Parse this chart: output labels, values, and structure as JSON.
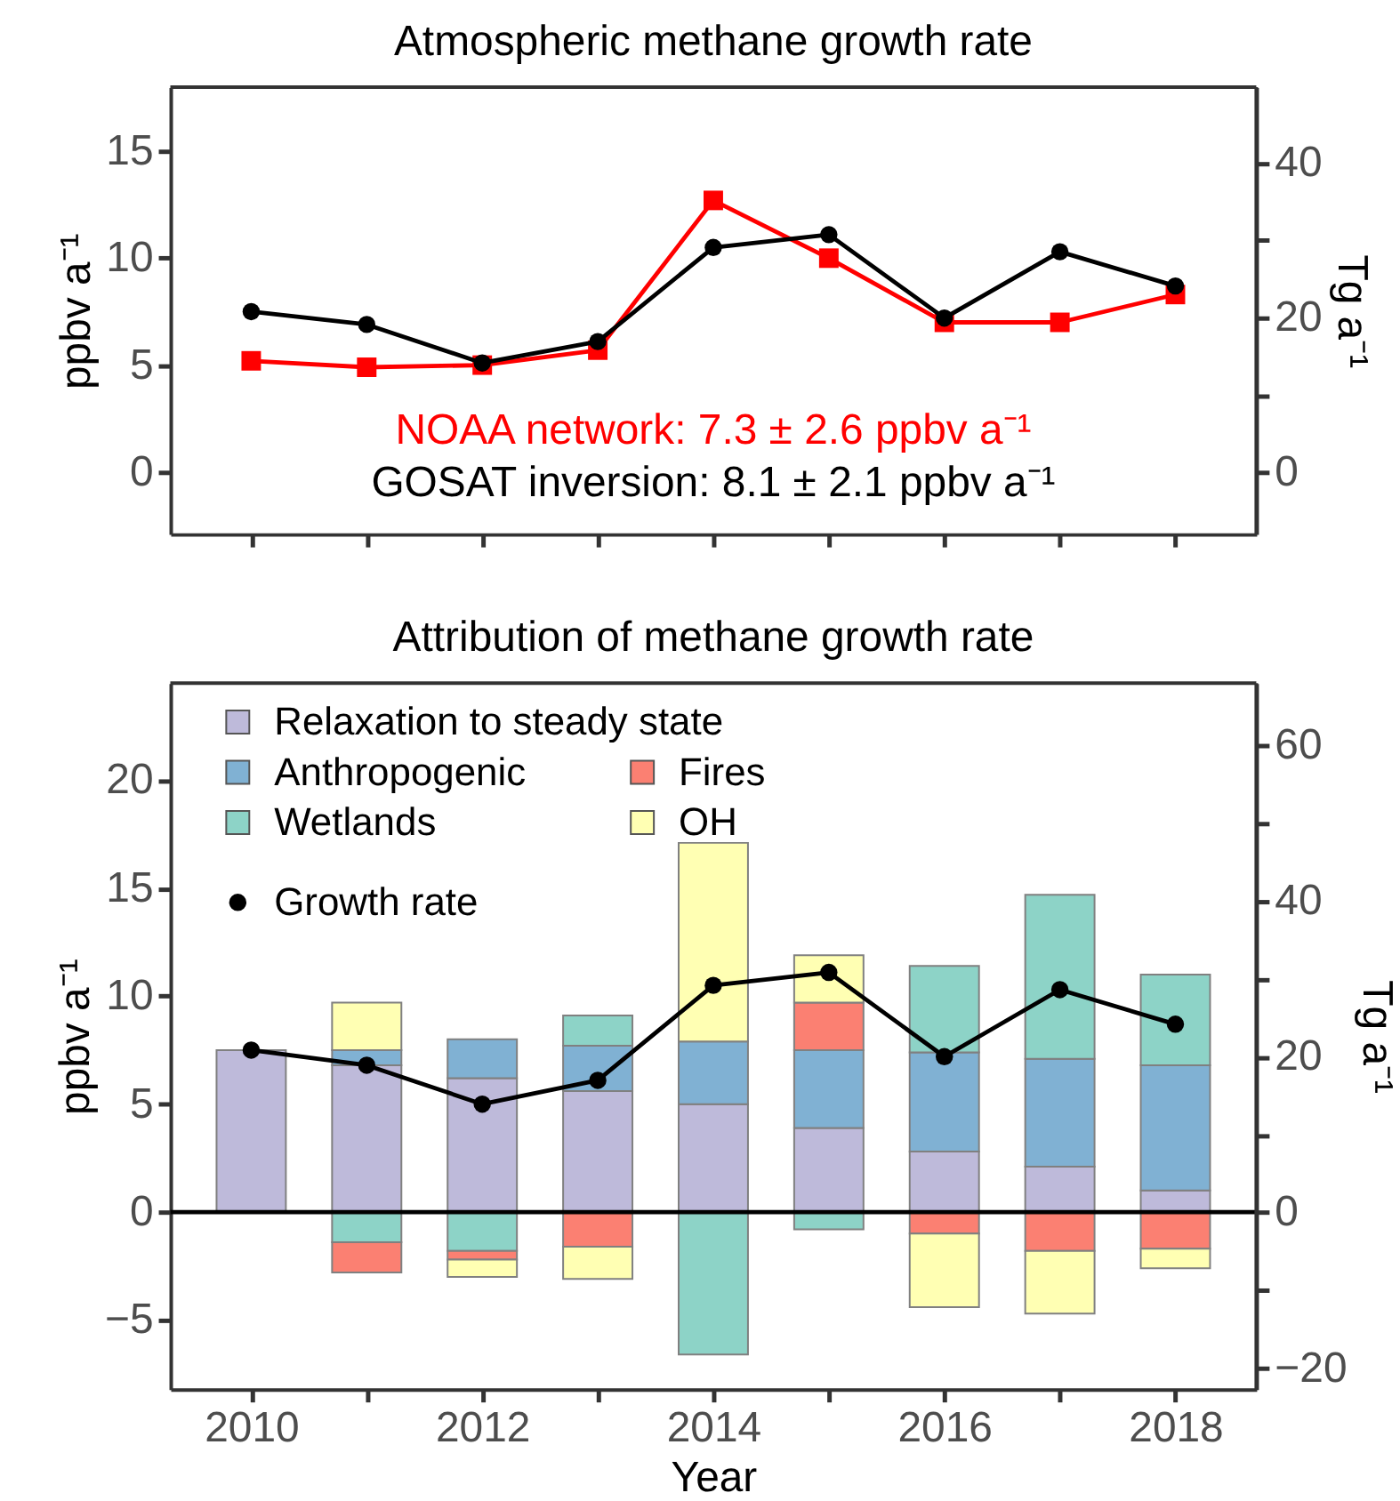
{
  "chart_data": [
    {
      "type": "line",
      "title": "Atmospheric methane growth rate",
      "ylabel": "ppbv a⁻¹",
      "y2label": "Tg a⁻¹",
      "x": [
        2010,
        2011,
        2012,
        2013,
        2014,
        2015,
        2016,
        2017,
        2018
      ],
      "series": [
        {
          "name": "NOAA network: 7.3 ± 2.6 ppbv a⁻¹",
          "color": "#ff0000",
          "marker": "square",
          "values": [
            5.2,
            4.9,
            5.0,
            5.7,
            12.7,
            10.0,
            7.0,
            7.0,
            8.3
          ]
        },
        {
          "name": "GOSAT inversion: 8.1 ± 2.1 ppbv a⁻¹",
          "color": "#000000",
          "marker": "circle",
          "values": [
            7.5,
            6.9,
            5.1,
            6.1,
            10.5,
            11.1,
            7.2,
            10.3,
            8.7
          ]
        }
      ],
      "xlim": [
        2009.3,
        2018.7
      ],
      "xticks": [
        2010,
        2011,
        2012,
        2013,
        2014,
        2015,
        2016,
        2017,
        2018
      ],
      "ylim": [
        -2.9,
        18.0
      ],
      "yticks": [
        0,
        5,
        10,
        15
      ],
      "y2lim": [
        -8.0,
        49.8
      ],
      "y2ticks": [
        0,
        {
          "value": 10,
          "label": null
        },
        20,
        {
          "value": 30,
          "label": null
        },
        40
      ],
      "tick_labels": "y",
      "legend": "bottom"
    },
    {
      "type": "bar",
      "stacked": true,
      "title": "Attribution of methane growth rate",
      "xlabel": "Year",
      "ylabel": "ppbv a⁻¹",
      "y2label": "Tg a⁻¹",
      "x": [
        2010,
        2011,
        2012,
        2013,
        2014,
        2015,
        2016,
        2017,
        2018
      ],
      "series": [
        {
          "name": "Relaxation to steady state",
          "color": "#bebada",
          "values": [
            7.5,
            6.8,
            6.2,
            5.6,
            5.0,
            3.9,
            2.8,
            2.1,
            1.0
          ]
        },
        {
          "name": "Anthropogenic",
          "color": "#80b1d3",
          "values": [
            null,
            0.7,
            1.8,
            2.1,
            2.9,
            3.6,
            4.6,
            5.0,
            5.8
          ]
        },
        {
          "name": "Wetlands",
          "color": "#8dd3c7",
          "values": [
            null,
            -1.4,
            -1.8,
            1.4,
            -6.6,
            -0.8,
            4.0,
            7.6,
            4.2
          ]
        },
        {
          "name": "Fires",
          "color": "#fb8072",
          "values": [
            null,
            -1.4,
            -0.4,
            -1.6,
            null,
            2.2,
            -1.0,
            -1.8,
            -1.7
          ]
        },
        {
          "name": "OH",
          "color": "#ffffb3",
          "values": [
            null,
            2.2,
            -0.8,
            -1.5,
            9.2,
            2.2,
            -3.4,
            -2.9,
            -0.9
          ]
        },
        {
          "name": "Growth rate",
          "type": "line",
          "color": "#000000",
          "marker": "circle",
          "values": [
            7.5,
            6.8,
            5.0,
            6.1,
            10.5,
            11.1,
            7.2,
            10.3,
            8.7
          ]
        }
      ],
      "xlim": [
        2009.3,
        2018.7
      ],
      "xticks": [
        2010,
        {
          "value": 2011,
          "label": null
        },
        2012,
        {
          "value": 2013,
          "label": null
        },
        2014,
        {
          "value": 2015,
          "label": null
        },
        2016,
        {
          "value": 2017,
          "label": null
        },
        2018
      ],
      "ylim": [
        -8.2,
        24.5
      ],
      "yticks": [
        -5,
        0,
        5,
        10,
        15,
        20
      ],
      "y2lim": [
        -22.7,
        68.0
      ],
      "y2ticks": [
        -20,
        {
          "value": -10,
          "label": null
        },
        0,
        {
          "value": 10,
          "label": null
        },
        20,
        {
          "value": 30,
          "label": null
        },
        40,
        {
          "value": 50,
          "label": null
        },
        60
      ],
      "ref_lines": [
        {
          "axis": "y",
          "value": 0,
          "color": "#000000"
        }
      ],
      "legend": "top left"
    }
  ]
}
